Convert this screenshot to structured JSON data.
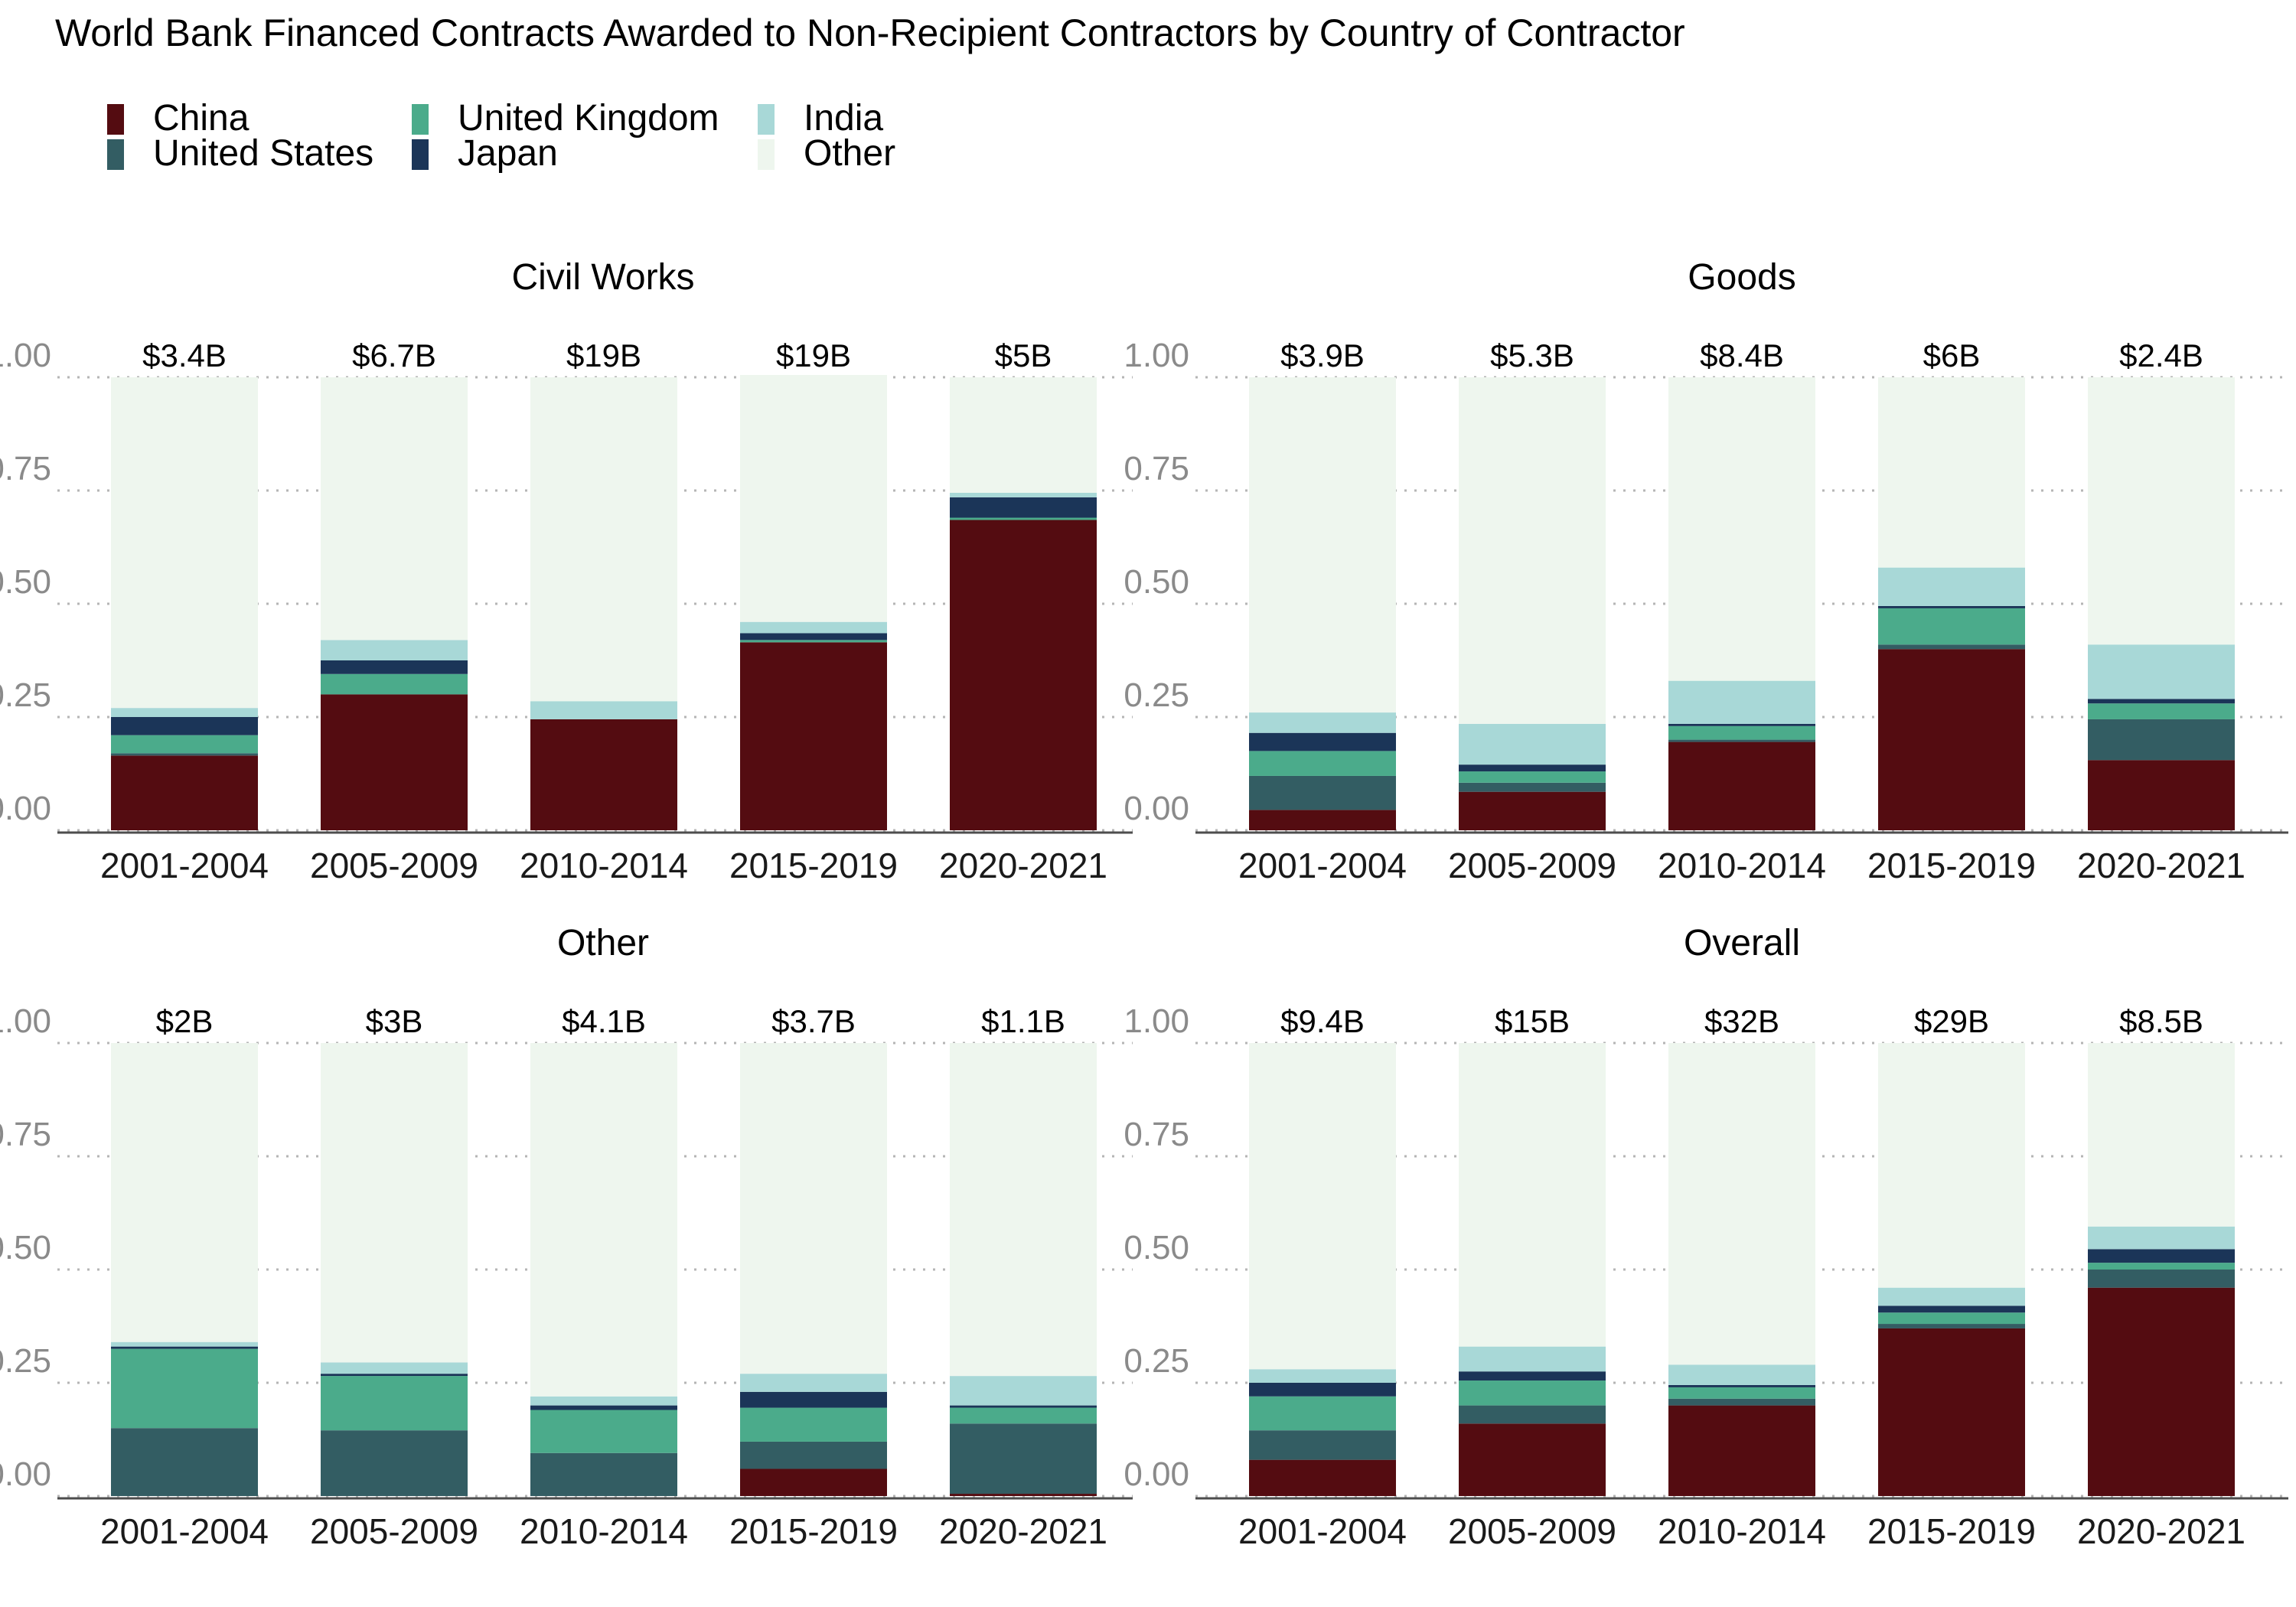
{
  "chart_data": {
    "type": "bar",
    "stacked": true,
    "title": "World Bank Financed Contracts Awarded to Non-Recipient Contractors by Country of Contractor",
    "legend": {
      "position": "top-left",
      "items": [
        "China",
        "United States",
        "United Kingdom",
        "Japan",
        "India",
        "Other"
      ]
    },
    "colors": {
      "China": "#540c11",
      "United States": "#335d63",
      "United Kingdom": "#4bab8b",
      "Japan": "#1b3558",
      "India": "#a8d8d7",
      "Other": "#eef6ee"
    },
    "y_ticks": [
      "0.00",
      "0.25",
      "0.50",
      "0.75",
      "1.00"
    ],
    "ylim": [
      0,
      1
    ],
    "grid": "horizontal dotted",
    "categories": [
      "2001-2004",
      "2005-2009",
      "2010-2014",
      "2015-2019",
      "2020-2021"
    ],
    "series_order": [
      "China",
      "United States",
      "United Kingdom",
      "Japan",
      "India",
      "Other"
    ],
    "facets": [
      {
        "title": "Civil Works",
        "totals": [
          "$3.4B",
          "$6.7B",
          "$19B",
          "$19B",
          "$5B"
        ],
        "series": [
          {
            "name": "China",
            "values": [
              0.165,
              0.3,
              0.245,
              0.415,
              0.685
            ]
          },
          {
            "name": "United States",
            "values": [
              0.005,
              0.0,
              0.0,
              0.0,
              0.0
            ]
          },
          {
            "name": "United Kingdom",
            "values": [
              0.04,
              0.045,
              0.0,
              0.005,
              0.005
            ]
          },
          {
            "name": "Japan",
            "values": [
              0.04,
              0.03,
              0.0,
              0.015,
              0.045
            ]
          },
          {
            "name": "India",
            "values": [
              0.02,
              0.045,
              0.04,
              0.025,
              0.01
            ]
          },
          {
            "name": "Other",
            "values": [
              0.73,
              0.58,
              0.715,
              0.545,
              0.255
            ]
          }
        ]
      },
      {
        "title": "Goods",
        "totals": [
          "$3.9B",
          "$5.3B",
          "$8.4B",
          "$6B",
          "$2.4B"
        ],
        "series": [
          {
            "name": "China",
            "values": [
              0.045,
              0.085,
              0.195,
              0.4,
              0.155
            ]
          },
          {
            "name": "United States",
            "values": [
              0.075,
              0.02,
              0.005,
              0.01,
              0.09
            ]
          },
          {
            "name": "United Kingdom",
            "values": [
              0.055,
              0.025,
              0.03,
              0.08,
              0.035
            ]
          },
          {
            "name": "Japan",
            "values": [
              0.04,
              0.015,
              0.005,
              0.005,
              0.01
            ]
          },
          {
            "name": "India",
            "values": [
              0.045,
              0.09,
              0.095,
              0.085,
              0.12
            ]
          },
          {
            "name": "Other",
            "values": [
              0.74,
              0.765,
              0.67,
              0.42,
              0.59
            ]
          }
        ]
      },
      {
        "title": "Other",
        "totals": [
          "$2B",
          "$3B",
          "$4.1B",
          "$3.7B",
          "$1.1B"
        ],
        "series": [
          {
            "name": "China",
            "values": [
              0.0,
              0.0,
              0.0,
              0.06,
              0.005
            ]
          },
          {
            "name": "United States",
            "values": [
              0.15,
              0.145,
              0.095,
              0.06,
              0.155
            ]
          },
          {
            "name": "United Kingdom",
            "values": [
              0.175,
              0.12,
              0.095,
              0.075,
              0.035
            ]
          },
          {
            "name": "Japan",
            "values": [
              0.005,
              0.005,
              0.01,
              0.035,
              0.005
            ]
          },
          {
            "name": "India",
            "values": [
              0.01,
              0.025,
              0.02,
              0.04,
              0.065
            ]
          },
          {
            "name": "Other",
            "values": [
              0.66,
              0.705,
              0.78,
              0.73,
              0.735
            ]
          }
        ]
      },
      {
        "title": "Overall",
        "totals": [
          "$9.4B",
          "$15B",
          "$32B",
          "$29B",
          "$8.5B"
        ],
        "series": [
          {
            "name": "China",
            "values": [
              0.08,
              0.16,
              0.2,
              0.37,
              0.46
            ]
          },
          {
            "name": "United States",
            "values": [
              0.065,
              0.04,
              0.015,
              0.01,
              0.04
            ]
          },
          {
            "name": "United Kingdom",
            "values": [
              0.075,
              0.055,
              0.025,
              0.025,
              0.015
            ]
          },
          {
            "name": "Japan",
            "values": [
              0.03,
              0.02,
              0.005,
              0.015,
              0.03
            ]
          },
          {
            "name": "India",
            "values": [
              0.03,
              0.055,
              0.045,
              0.04,
              0.05
            ]
          },
          {
            "name": "Other",
            "values": [
              0.72,
              0.67,
              0.71,
              0.54,
              0.405
            ]
          }
        ]
      }
    ]
  }
}
